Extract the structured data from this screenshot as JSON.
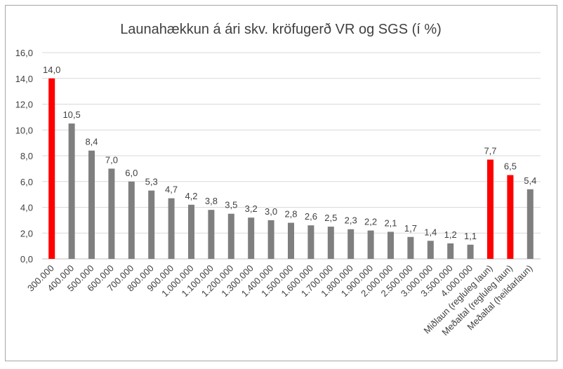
{
  "chart_data": {
    "type": "bar",
    "title": "Launahækkun á ári skv. kröfugerð VR og SGS (í %)",
    "xlabel": "",
    "ylabel": "",
    "ylim": [
      0,
      16
    ],
    "yticks": [
      "0,0",
      "2,0",
      "4,0",
      "6,0",
      "8,0",
      "10,0",
      "12,0",
      "14,0",
      "16,0"
    ],
    "grid": true,
    "categories": [
      "300.000",
      "400.000",
      "500.000",
      "600.000",
      "700.000",
      "800.000",
      "900.000",
      "1.000.000",
      "1.100.000",
      "1.200.000",
      "1.300.000",
      "1.400.000",
      "1.500.000",
      "1.600.000",
      "1.700.000",
      "1.800.000",
      "1.900.000",
      "2.000.000",
      "2.500.000",
      "3.000.000",
      "3.500.000",
      "4.000.000",
      "Miðlaun (regluleg laun)",
      "Meðaltal (regluleg laun)",
      "Meðaltal (heildarlaun)"
    ],
    "values": [
      14.0,
      10.5,
      8.4,
      7.0,
      6.0,
      5.3,
      4.7,
      4.2,
      3.8,
      3.5,
      3.2,
      3.0,
      2.8,
      2.6,
      2.5,
      2.3,
      2.2,
      2.1,
      1.7,
      1.4,
      1.2,
      1.1,
      7.7,
      6.5,
      5.4
    ],
    "value_labels": [
      "14,0",
      "10,5",
      "8,4",
      "7,0",
      "6,0",
      "5,3",
      "4,7",
      "4,2",
      "3,8",
      "3,5",
      "3,2",
      "3,0",
      "2,8",
      "2,6",
      "2,5",
      "2,3",
      "2,2",
      "2,1",
      "1,7",
      "1,4",
      "1,2",
      "1,1",
      "7,7",
      "6,5",
      "5,4"
    ],
    "highlighted": [
      0,
      22,
      23
    ],
    "colors": {
      "default": "#7f7f7f",
      "highlight": "#ff0000",
      "grid": "#d9d9d9"
    }
  }
}
